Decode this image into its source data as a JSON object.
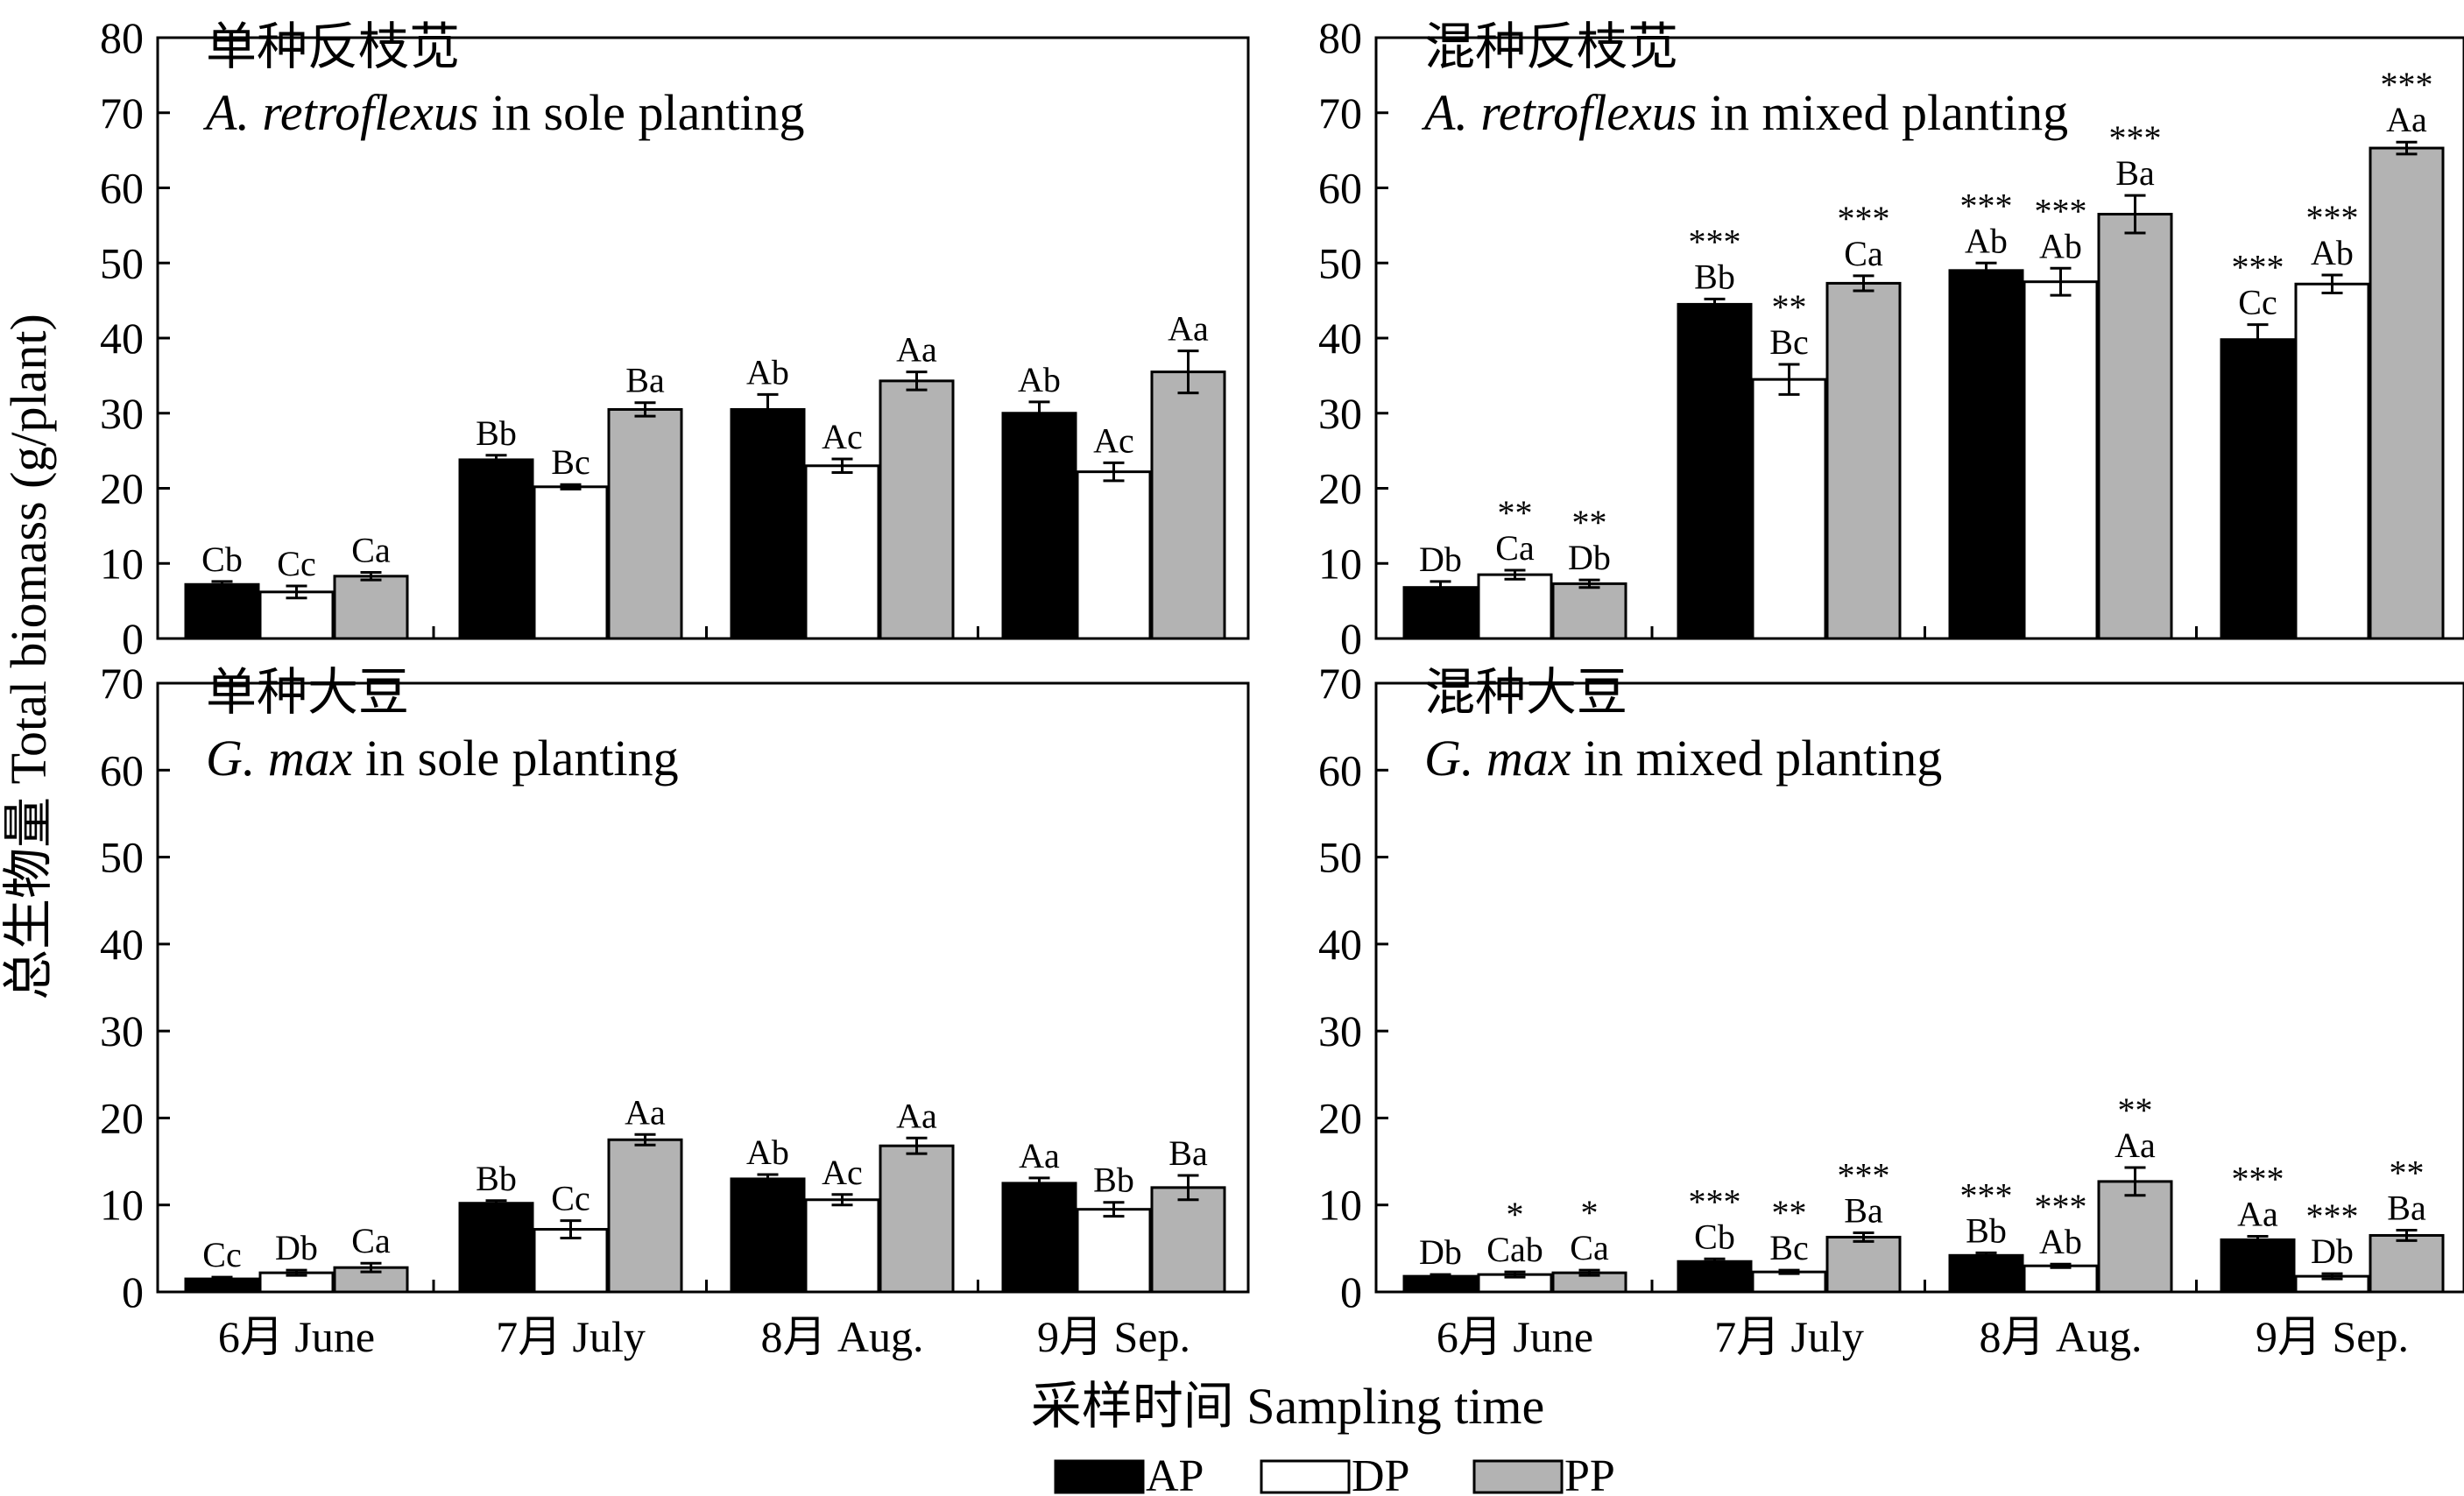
{
  "figure": {
    "ylabel": "总生物量 Total biomass (g/plant)",
    "xlabel": "采样时间 Sampling time"
  },
  "legend": [
    {
      "key": "AP",
      "label": "AP",
      "color": "#000000"
    },
    {
      "key": "DP",
      "label": "DP",
      "color": "#ffffff"
    },
    {
      "key": "PP",
      "label": "PP",
      "color": "#b3b3b3"
    }
  ],
  "chart_data": [
    {
      "type": "bar",
      "title": "单种反枝苋",
      "title_line2": [
        "A. retroflexus",
        " in sole planting"
      ],
      "categories": [
        "6月 June",
        "7月 July",
        "8月 Aug.",
        "9月 Sep."
      ],
      "ylim": [
        0,
        80
      ],
      "yticks": [
        0,
        10,
        20,
        30,
        40,
        50,
        60,
        70,
        80
      ],
      "show_xticks": false,
      "series": [
        {
          "name": "AP",
          "color": "#000000",
          "values": [
            7.2,
            23.8,
            30.5,
            30.0
          ],
          "errors": [
            0.4,
            0.6,
            2.0,
            1.5
          ],
          "labels": [
            "Cb",
            "Bb",
            "Ab",
            "Ab"
          ],
          "stars": [
            "",
            "",
            "",
            ""
          ]
        },
        {
          "name": "DP",
          "color": "#ffffff",
          "values": [
            6.2,
            20.2,
            23.0,
            22.2
          ],
          "errors": [
            0.8,
            0.3,
            0.9,
            1.2
          ],
          "labels": [
            "Cc",
            "Bc",
            "Ac",
            "Ac"
          ],
          "stars": [
            "",
            "",
            "",
            ""
          ]
        },
        {
          "name": "PP",
          "color": "#b3b3b3",
          "values": [
            8.3,
            30.5,
            34.3,
            35.5
          ],
          "errors": [
            0.5,
            0.9,
            1.2,
            2.8
          ],
          "labels": [
            "Ca",
            "Ba",
            "Aa",
            "Aa"
          ],
          "stars": [
            "",
            "",
            "",
            ""
          ]
        }
      ]
    },
    {
      "type": "bar",
      "title": "混种反枝苋",
      "title_line2": [
        "A. retroflexus",
        " in mixed planting"
      ],
      "categories": [
        "6月 June",
        "7月 July",
        "8月 Aug.",
        "9月 Sep."
      ],
      "ylim": [
        0,
        80
      ],
      "yticks": [
        0,
        10,
        20,
        30,
        40,
        50,
        60,
        70,
        80
      ],
      "show_xticks": false,
      "series": [
        {
          "name": "AP",
          "color": "#000000",
          "values": [
            6.8,
            44.5,
            49.0,
            39.8
          ],
          "errors": [
            0.8,
            0.7,
            1.0,
            2.0
          ],
          "labels": [
            "Db",
            "Bb",
            "Ab",
            "Cc"
          ],
          "stars": [
            "",
            "***",
            "***",
            "***"
          ]
        },
        {
          "name": "DP",
          "color": "#ffffff",
          "values": [
            8.5,
            34.5,
            47.5,
            47.2
          ],
          "errors": [
            0.6,
            2.0,
            1.8,
            1.2
          ],
          "labels": [
            "Ca",
            "Bc",
            "Ab",
            "Ab"
          ],
          "stars": [
            "**",
            "**",
            "***",
            "***"
          ]
        },
        {
          "name": "PP",
          "color": "#b3b3b3",
          "values": [
            7.3,
            47.3,
            56.5,
            65.3
          ],
          "errors": [
            0.5,
            1.0,
            2.5,
            0.8
          ],
          "labels": [
            "Db",
            "Ca",
            "Ba",
            "Aa"
          ],
          "stars": [
            "**",
            "***",
            "***",
            "***"
          ]
        }
      ]
    },
    {
      "type": "bar",
      "title": "单种大豆",
      "title_line2": [
        "G. max",
        " in sole planting"
      ],
      "categories": [
        "6月 June",
        "7月 July",
        "8月 Aug.",
        "9月 Sep."
      ],
      "ylim": [
        0,
        70
      ],
      "yticks": [
        0,
        10,
        20,
        30,
        40,
        50,
        60,
        70
      ],
      "show_xticks": true,
      "series": [
        {
          "name": "AP",
          "color": "#000000",
          "values": [
            1.5,
            10.2,
            13.0,
            12.5
          ],
          "errors": [
            0.2,
            0.3,
            0.5,
            0.6
          ],
          "labels": [
            "Cc",
            "Bb",
            "Ab",
            "Aa"
          ],
          "stars": [
            "",
            "",
            "",
            ""
          ]
        },
        {
          "name": "DP",
          "color": "#ffffff",
          "values": [
            2.2,
            7.2,
            10.6,
            9.5
          ],
          "errors": [
            0.3,
            1.0,
            0.6,
            0.8
          ],
          "labels": [
            "Db",
            "Cc",
            "Ac",
            "Bb"
          ],
          "stars": [
            "",
            "",
            "",
            ""
          ]
        },
        {
          "name": "PP",
          "color": "#b3b3b3",
          "values": [
            2.8,
            17.5,
            16.8,
            12.0
          ],
          "errors": [
            0.5,
            0.6,
            0.9,
            1.4
          ],
          "labels": [
            "Ca",
            "Aa",
            "Aa",
            "Ba"
          ],
          "stars": [
            "",
            "",
            "",
            ""
          ]
        }
      ]
    },
    {
      "type": "bar",
      "title": "混种大豆",
      "title_line2": [
        "G. max",
        " in mixed planting"
      ],
      "categories": [
        "6月 June",
        "7月 July",
        "8月 Aug.",
        "9月 Sep."
      ],
      "ylim": [
        0,
        70
      ],
      "yticks": [
        0,
        10,
        20,
        30,
        40,
        50,
        60,
        70
      ],
      "show_xticks": true,
      "series": [
        {
          "name": "AP",
          "color": "#000000",
          "values": [
            1.8,
            3.5,
            4.2,
            6.0
          ],
          "errors": [
            0.2,
            0.3,
            0.3,
            0.4
          ],
          "labels": [
            "Db",
            "Cb",
            "Bb",
            "Aa"
          ],
          "stars": [
            "",
            "***",
            "***",
            "***"
          ]
        },
        {
          "name": "DP",
          "color": "#ffffff",
          "values": [
            2.0,
            2.3,
            3.0,
            1.8
          ],
          "errors": [
            0.3,
            0.2,
            0.2,
            0.3
          ],
          "labels": [
            "Cab",
            "Bc",
            "Ab",
            "Db"
          ],
          "stars": [
            "*",
            "**",
            "***",
            "***"
          ]
        },
        {
          "name": "PP",
          "color": "#b3b3b3",
          "values": [
            2.2,
            6.3,
            12.7,
            6.5
          ],
          "errors": [
            0.3,
            0.5,
            1.6,
            0.6
          ],
          "labels": [
            "Ca",
            "Ba",
            "Aa",
            "Ba"
          ],
          "stars": [
            "*",
            "***",
            "**",
            "**"
          ]
        }
      ]
    }
  ]
}
